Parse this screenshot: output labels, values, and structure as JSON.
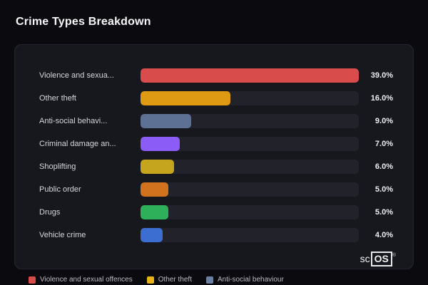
{
  "title": "Crime Types Breakdown",
  "chart_data": {
    "type": "bar",
    "orientation": "horizontal",
    "title": "Crime Types Breakdown",
    "xlabel": "",
    "ylabel": "",
    "xlim": [
      0,
      39
    ],
    "grid": false,
    "legend_position": "bottom-left",
    "categories": [
      "Violence and sexua...",
      "Other theft",
      "Anti-social behavi...",
      "Criminal damage an...",
      "Shoplifting",
      "Public order",
      "Drugs",
      "Vehicle crime"
    ],
    "values": [
      39.0,
      16.0,
      9.0,
      7.0,
      6.0,
      5.0,
      5.0,
      4.0
    ],
    "value_labels": [
      "39.0%",
      "16.0%",
      "9.0%",
      "7.0%",
      "6.0%",
      "5.0%",
      "5.0%",
      "4.0%"
    ],
    "bar_colors": [
      "#d94c4c",
      "#dd9a12",
      "#5d7195",
      "#8b5cf6",
      "#c6a51e",
      "#d1731e",
      "#2eb05a",
      "#3b6ed0"
    ],
    "track_color": "#22222b",
    "legend": [
      {
        "label": "Violence and sexual offences",
        "color": "#d94c4c"
      },
      {
        "label": "Other theft",
        "color": "#e9b11a"
      },
      {
        "label": "Anti-social behaviour",
        "color": "#6c80a5"
      }
    ]
  },
  "watermark": {
    "prefix": "sc",
    "boxed": "OS",
    "reg": "®"
  }
}
